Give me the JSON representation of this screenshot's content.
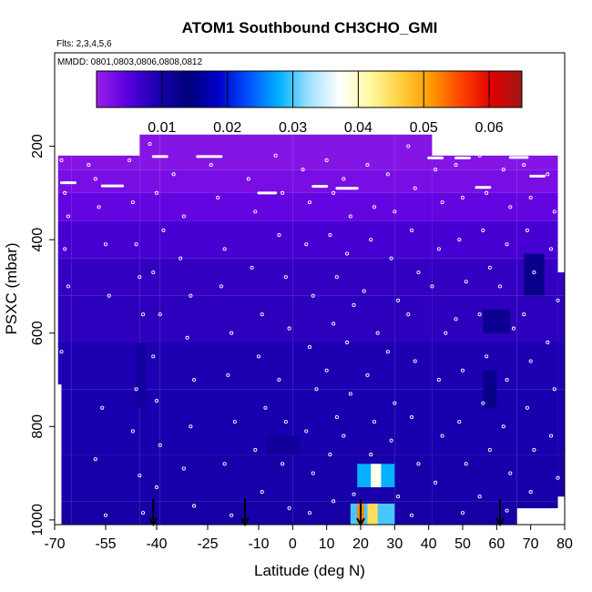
{
  "chart_data": {
    "type": "heatmap",
    "title": "ATOM1 Southbound CH3CHO_GMI",
    "subtitle_flights": "Flts: 2,3,4,5,6",
    "subtitle_dates": "MMDD: 0801,0803,0806,0808,0812",
    "xlabel": "Latitude (deg N)",
    "ylabel": "PSXC (mbar)",
    "xlim": [
      -70,
      80
    ],
    "ylim": [
      1010,
      0
    ],
    "x_ticks": [
      "-70",
      "-55",
      "-40",
      "-25",
      "-10",
      "0",
      "10",
      "20",
      "30",
      "40",
      "50",
      "60",
      "70",
      "80"
    ],
    "x_tick_values": [
      -70,
      -55,
      -40,
      -25,
      -10,
      0,
      10,
      20,
      30,
      40,
      50,
      60,
      70,
      80
    ],
    "y_ticks": [
      "200",
      "400",
      "600",
      "800",
      "1000"
    ],
    "y_tick_values": [
      200,
      400,
      600,
      800,
      1000
    ],
    "colorbar": {
      "min": 0.0,
      "max": 0.065,
      "tick_labels": [
        "0.01",
        "0.02",
        "0.03",
        "0.04",
        "0.05",
        "0.06"
      ],
      "tick_values": [
        0.01,
        0.02,
        0.03,
        0.04,
        0.05,
        0.06
      ],
      "colors": [
        "#9a1fe8",
        "#5a00e0",
        "#1a00b0",
        "#00007a",
        "#0000c8",
        "#0050ff",
        "#00b0ff",
        "#9fe0ff",
        "#ffffff",
        "#fffaa0",
        "#ffd040",
        "#ff9a00",
        "#ff4400",
        "#e00000",
        "#a01818"
      ]
    },
    "columns": [
      {
        "lat": [
          -69,
          -68
        ],
        "top": 220,
        "bottom": 710
      },
      {
        "lat": [
          -68,
          -65
        ],
        "top": 220,
        "bottom": 1010
      },
      {
        "lat": [
          -65,
          -45
        ],
        "top": 220,
        "bottom": 1010
      },
      {
        "lat": [
          -45,
          -39
        ],
        "top": 175,
        "bottom": 1010
      },
      {
        "lat": [
          -39,
          0
        ],
        "top": 175,
        "bottom": 1010
      },
      {
        "lat": [
          0,
          30
        ],
        "top": 175,
        "bottom": 1010
      },
      {
        "lat": [
          30,
          41
        ],
        "top": 175,
        "bottom": 1010
      },
      {
        "lat": [
          41,
          66
        ],
        "top": 220,
        "bottom": 1010
      },
      {
        "lat": [
          66,
          78
        ],
        "top": 220,
        "bottom": 975
      },
      {
        "lat": [
          78,
          80
        ],
        "top": 470,
        "bottom": 950
      }
    ],
    "background_rows": [
      {
        "p": [
          175,
          250
        ],
        "value": 0.0015
      },
      {
        "p": [
          250,
          300
        ],
        "value": 0.0025
      },
      {
        "p": [
          300,
          360
        ],
        "value": 0.004
      },
      {
        "p": [
          360,
          440
        ],
        "value": 0.006
      },
      {
        "p": [
          440,
          520
        ],
        "value": 0.0075
      },
      {
        "p": [
          520,
          620
        ],
        "value": 0.008
      },
      {
        "p": [
          620,
          720
        ],
        "value": 0.009
      },
      {
        "p": [
          720,
          860
        ],
        "value": 0.0095
      },
      {
        "p": [
          860,
          960
        ],
        "value": 0.0098
      },
      {
        "p": [
          960,
          1010
        ],
        "value": 0.0102
      }
    ],
    "highlights": [
      {
        "lat": [
          -46,
          -43
        ],
        "p": [
          620,
          760
        ],
        "value": 0.0108
      },
      {
        "lat": [
          56,
          60
        ],
        "p": [
          680,
          760
        ],
        "value": 0.0125
      },
      {
        "lat": [
          56,
          64
        ],
        "p": [
          550,
          600
        ],
        "value": 0.012
      },
      {
        "lat": [
          68,
          74
        ],
        "p": [
          430,
          520
        ],
        "value": 0.0125
      },
      {
        "lat": [
          -8,
          2
        ],
        "p": [
          820,
          860
        ],
        "value": 0.0112
      },
      {
        "lat": [
          19,
          30
        ],
        "p": [
          880,
          930
        ],
        "value": 0.028
      },
      {
        "lat": [
          23,
          26
        ],
        "p": [
          880,
          930
        ],
        "value": 0.038
      },
      {
        "lat": [
          17,
          30
        ],
        "p": [
          965,
          1010
        ],
        "value": 0.03
      },
      {
        "lat": [
          22,
          25
        ],
        "p": [
          965,
          1010
        ],
        "value": 0.045
      },
      {
        "lat": [
          19,
          21
        ],
        "p": [
          965,
          1010
        ],
        "value": 0.052
      }
    ],
    "markers": [
      -41,
      -14,
      20,
      61
    ],
    "observations": [
      [
        -68,
        230
      ],
      [
        -67,
        300
      ],
      [
        -66,
        350
      ],
      [
        -67,
        420
      ],
      [
        -66,
        500
      ],
      [
        -68,
        640
      ],
      [
        -60,
        240
      ],
      [
        -58,
        270
      ],
      [
        -57,
        330
      ],
      [
        -55,
        410
      ],
      [
        -54,
        520
      ],
      [
        -56,
        760
      ],
      [
        -58,
        870
      ],
      [
        -55,
        990
      ],
      [
        -48,
        230
      ],
      [
        -47,
        320
      ],
      [
        -46,
        410
      ],
      [
        -45,
        480
      ],
      [
        -44,
        560
      ],
      [
        -46,
        720
      ],
      [
        -47,
        810
      ],
      [
        -45,
        905
      ],
      [
        -44,
        985
      ],
      [
        -42,
        195
      ],
      [
        -40,
        300
      ],
      [
        -38,
        380
      ],
      [
        -41,
        470
      ],
      [
        -39,
        560
      ],
      [
        -41,
        650
      ],
      [
        -40,
        745
      ],
      [
        -39,
        840
      ],
      [
        -40,
        930
      ],
      [
        -35,
        260
      ],
      [
        -32,
        350
      ],
      [
        -33,
        440
      ],
      [
        -30,
        520
      ],
      [
        -31,
        610
      ],
      [
        -29,
        700
      ],
      [
        -30,
        800
      ],
      [
        -32,
        890
      ],
      [
        -29,
        970
      ],
      [
        -24,
        240
      ],
      [
        -22,
        310
      ],
      [
        -20,
        420
      ],
      [
        -21,
        500
      ],
      [
        -18,
        600
      ],
      [
        -19,
        690
      ],
      [
        -17,
        790
      ],
      [
        -20,
        880
      ],
      [
        -18,
        990
      ],
      [
        -13,
        270
      ],
      [
        -11,
        340
      ],
      [
        -12,
        460
      ],
      [
        -9,
        560
      ],
      [
        -10,
        650
      ],
      [
        -8,
        760
      ],
      [
        -11,
        850
      ],
      [
        -9,
        940
      ],
      [
        -5,
        220
      ],
      [
        -3,
        300
      ],
      [
        -4,
        390
      ],
      [
        -2,
        480
      ],
      [
        -1,
        590
      ],
      [
        -4,
        700
      ],
      [
        -2,
        790
      ],
      [
        -3,
        880
      ],
      [
        -1,
        975
      ],
      [
        3,
        250
      ],
      [
        5,
        320
      ],
      [
        4,
        410
      ],
      [
        6,
        520
      ],
      [
        5,
        630
      ],
      [
        7,
        720
      ],
      [
        4,
        810
      ],
      [
        6,
        900
      ],
      [
        5,
        985
      ],
      [
        10,
        230
      ],
      [
        12,
        300
      ],
      [
        11,
        390
      ],
      [
        13,
        480
      ],
      [
        12,
        580
      ],
      [
        10,
        680
      ],
      [
        13,
        780
      ],
      [
        11,
        860
      ],
      [
        12,
        960
      ],
      [
        15,
        270
      ],
      [
        17,
        350
      ],
      [
        16,
        430
      ],
      [
        18,
        540
      ],
      [
        16,
        620
      ],
      [
        17,
        730
      ],
      [
        15,
        820
      ],
      [
        18,
        945
      ],
      [
        22,
        240
      ],
      [
        24,
        330
      ],
      [
        23,
        400
      ],
      [
        21,
        510
      ],
      [
        25,
        600
      ],
      [
        22,
        690
      ],
      [
        24,
        790
      ],
      [
        23,
        860
      ],
      [
        28,
        260
      ],
      [
        30,
        340
      ],
      [
        29,
        440
      ],
      [
        31,
        530
      ],
      [
        28,
        640
      ],
      [
        30,
        750
      ],
      [
        29,
        830
      ],
      [
        31,
        950
      ],
      [
        34,
        200
      ],
      [
        36,
        290
      ],
      [
        35,
        380
      ],
      [
        37,
        470
      ],
      [
        34,
        560
      ],
      [
        36,
        660
      ],
      [
        35,
        780
      ],
      [
        37,
        880
      ],
      [
        35,
        990
      ],
      [
        42,
        250
      ],
      [
        44,
        320
      ],
      [
        43,
        420
      ],
      [
        41,
        500
      ],
      [
        45,
        600
      ],
      [
        43,
        700
      ],
      [
        44,
        820
      ],
      [
        42,
        920
      ],
      [
        48,
        240
      ],
      [
        50,
        310
      ],
      [
        49,
        400
      ],
      [
        51,
        490
      ],
      [
        48,
        570
      ],
      [
        50,
        680
      ],
      [
        49,
        790
      ],
      [
        51,
        880
      ],
      [
        50,
        985
      ],
      [
        55,
        220
      ],
      [
        57,
        300
      ],
      [
        56,
        380
      ],
      [
        58,
        460
      ],
      [
        55,
        560
      ],
      [
        57,
        650
      ],
      [
        56,
        750
      ],
      [
        58,
        850
      ],
      [
        55,
        950
      ],
      [
        62,
        250
      ],
      [
        64,
        330
      ],
      [
        63,
        410
      ],
      [
        61,
        500
      ],
      [
        65,
        590
      ],
      [
        63,
        700
      ],
      [
        62,
        800
      ],
      [
        64,
        900
      ],
      [
        63,
        980
      ],
      [
        68,
        240
      ],
      [
        70,
        310
      ],
      [
        69,
        380
      ],
      [
        71,
        470
      ],
      [
        68,
        560
      ],
      [
        70,
        660
      ],
      [
        69,
        760
      ],
      [
        71,
        850
      ],
      [
        70,
        940
      ],
      [
        75,
        260
      ],
      [
        77,
        340
      ],
      [
        76,
        420
      ],
      [
        78,
        530
      ],
      [
        75,
        620
      ],
      [
        77,
        720
      ],
      [
        76,
        820
      ],
      [
        78,
        910
      ]
    ],
    "observation_runs": [
      {
        "lat": [
          -68,
          -64
        ],
        "p": 278
      },
      {
        "lat": [
          -56,
          -50
        ],
        "p": 285
      },
      {
        "lat": [
          -41,
          -37
        ],
        "p": 222
      },
      {
        "lat": [
          -28,
          -21
        ],
        "p": 222
      },
      {
        "lat": [
          -10,
          -5
        ],
        "p": 300
      },
      {
        "lat": [
          6,
          10
        ],
        "p": 286
      },
      {
        "lat": [
          13,
          19
        ],
        "p": 290
      },
      {
        "lat": [
          40,
          44
        ],
        "p": 225
      },
      {
        "lat": [
          48,
          52
        ],
        "p": 225
      },
      {
        "lat": [
          54,
          58
        ],
        "p": 288
      },
      {
        "lat": [
          64,
          69
        ],
        "p": 224
      },
      {
        "lat": [
          70,
          74
        ],
        "p": 264
      }
    ]
  }
}
